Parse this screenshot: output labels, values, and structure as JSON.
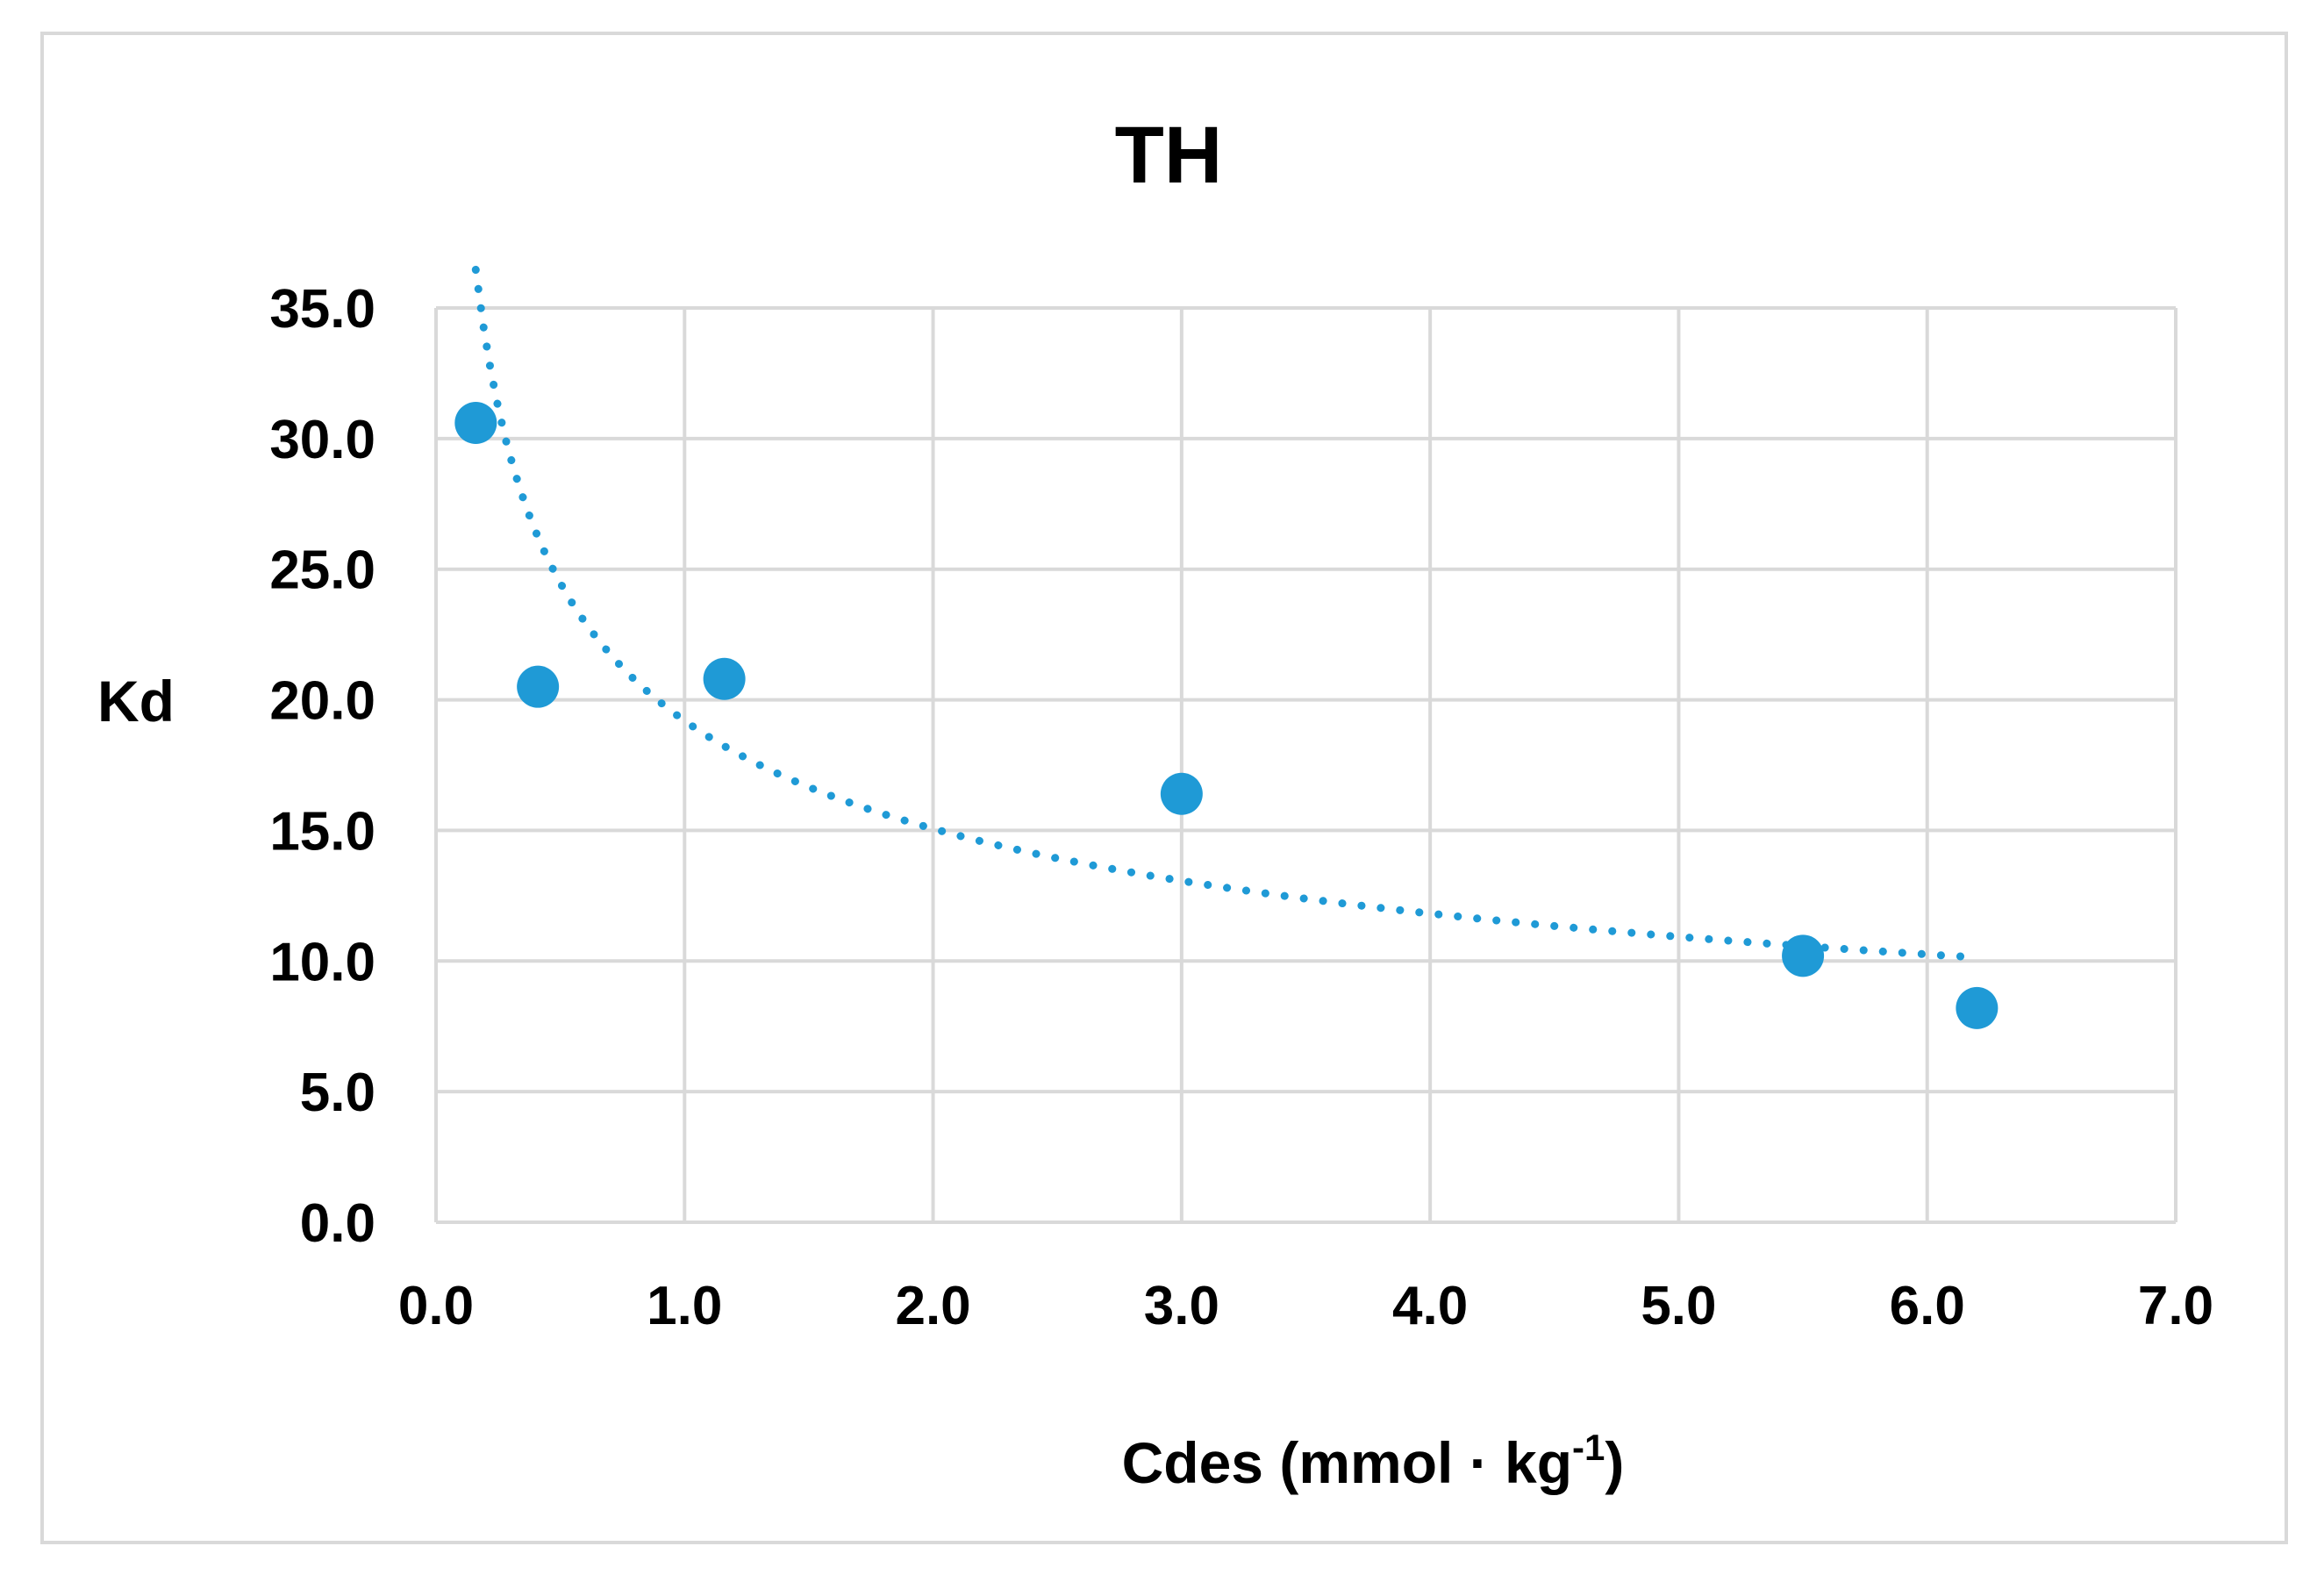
{
  "chart_data": {
    "type": "scatter",
    "title": "TH",
    "xlabel": "Cdes (mmol · kg",
    "xlabel_sup": "-1",
    "xlabel_close": ")",
    "ylabel": "Kd",
    "xlim": [
      0,
      7
    ],
    "ylim": [
      0,
      35
    ],
    "x_ticks": [
      0,
      1,
      2,
      3,
      4,
      5,
      6,
      7
    ],
    "y_ticks": [
      0,
      5,
      10,
      15,
      20,
      25,
      30,
      35
    ],
    "x_tick_labels": [
      "0.0",
      "1.0",
      "2.0",
      "3.0",
      "4.0",
      "5.0",
      "6.0",
      "7.0"
    ],
    "y_tick_labels": [
      "0.0",
      "5.0",
      "10.0",
      "15.0",
      "20.0",
      "25.0",
      "30.0",
      "35.0"
    ],
    "grid": true,
    "legend": "none",
    "series": [
      {
        "name": "Kd",
        "x": [
          0.16,
          0.41,
          1.16,
          3.0,
          5.5,
          6.2
        ],
        "y": [
          30.6,
          20.5,
          20.8,
          16.4,
          10.2,
          8.2
        ],
        "color": "#1f9ad6"
      }
    ],
    "trendline": {
      "type": "power",
      "style": "dotted",
      "color": "#1f9ad6",
      "coefficient": 19.2,
      "exponent": -0.35,
      "x_range": [
        0.16,
        6.2
      ]
    },
    "colors": {
      "grid": "#d9d9d9",
      "frame": "#d9d9d9",
      "text": "#000000"
    }
  }
}
